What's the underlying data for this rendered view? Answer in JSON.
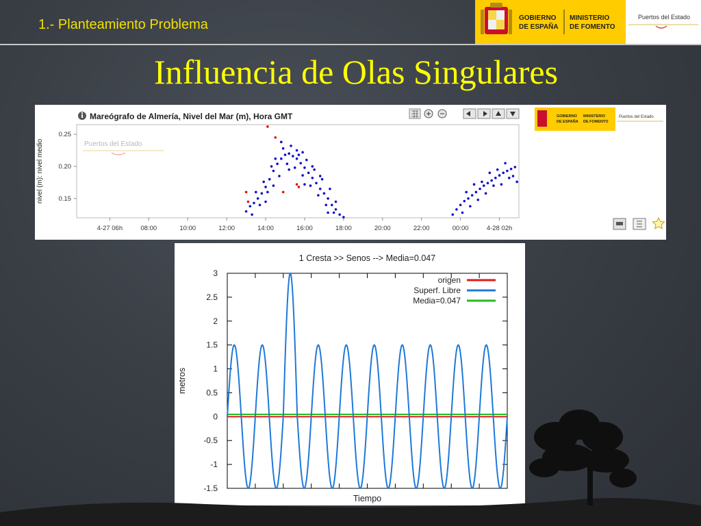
{
  "header": {
    "section_label": "1.- Planteamiento Problema",
    "gobierno_line1": "GOBIERNO",
    "gobierno_line2": "DE ESPAÑA",
    "ministerio_line1": "MINISTERIO",
    "ministerio_line2": "DE FOMENTO",
    "puertos": "Puertos del Estado"
  },
  "slide_title": "Influencia de Olas Singulares",
  "colors": {
    "title_yellow": "#ffff00",
    "gov_yellow": "#ffcc00",
    "obs_blue": "#1010cc",
    "obs_red": "#e01010",
    "series_red": "#e31a1c",
    "series_blue": "#1f78d8",
    "series_green": "#22bb22"
  },
  "chart_data": [
    {
      "type": "scatter",
      "title": "Mareógrafo de Almería, Nivel del Mar (m), Hora GMT",
      "ylabel": "nivel (m): nivel medio",
      "xlabel": "",
      "x_tick_labels": [
        "4-27 06h",
        "08:00",
        "10:00",
        "12:00",
        "14:00",
        "16:00",
        "18:00",
        "20:00",
        "22:00",
        "00:00",
        "4-28 02h"
      ],
      "x_tick_hours": [
        6,
        8,
        10,
        12,
        14,
        16,
        18,
        20,
        22,
        24,
        26
      ],
      "xlim_hours": [
        4.3,
        27.0
      ],
      "y_ticks": [
        0.15,
        0.2,
        0.25
      ],
      "y_tick_labels": [
        "0.15",
        "0.20",
        "0.25"
      ],
      "ylim": [
        0.12,
        0.265
      ],
      "watermark": "Puertos del Estado",
      "series": [
        {
          "color": "blue",
          "points": [
            [
              13.0,
              0.13
            ],
            [
              13.2,
              0.138
            ],
            [
              13.4,
              0.143
            ],
            [
              13.6,
              0.15
            ],
            [
              13.8,
              0.158
            ],
            [
              14.0,
              0.168
            ],
            [
              14.2,
              0.18
            ],
            [
              14.4,
              0.193
            ],
            [
              14.6,
              0.204
            ],
            [
              14.8,
              0.212
            ],
            [
              15.0,
              0.218
            ],
            [
              15.2,
              0.22
            ],
            [
              15.4,
              0.216
            ],
            [
              15.6,
              0.212
            ],
            [
              15.8,
              0.205
            ],
            [
              16.0,
              0.198
            ],
            [
              16.2,
              0.19
            ],
            [
              16.4,
              0.182
            ],
            [
              16.6,
              0.174
            ],
            [
              16.8,
              0.165
            ],
            [
              17.0,
              0.158
            ],
            [
              17.2,
              0.15
            ],
            [
              17.4,
              0.14
            ],
            [
              17.6,
              0.133
            ],
            [
              17.8,
              0.125
            ],
            [
              18.0,
              0.121
            ],
            [
              13.3,
              0.125
            ],
            [
              13.7,
              0.14
            ],
            [
              14.1,
              0.16
            ],
            [
              14.3,
              0.2
            ],
            [
              14.5,
              0.212
            ],
            [
              14.7,
              0.185
            ],
            [
              14.9,
              0.228
            ],
            [
              15.1,
              0.204
            ],
            [
              15.3,
              0.232
            ],
            [
              15.5,
              0.198
            ],
            [
              15.7,
              0.218
            ],
            [
              15.9,
              0.186
            ],
            [
              16.1,
              0.21
            ],
            [
              16.3,
              0.17
            ],
            [
              16.5,
              0.195
            ],
            [
              16.7,
              0.155
            ],
            [
              16.9,
              0.18
            ],
            [
              17.1,
              0.14
            ],
            [
              17.3,
              0.165
            ],
            [
              17.5,
              0.128
            ],
            [
              13.5,
              0.16
            ],
            [
              13.9,
              0.176
            ],
            [
              14.0,
              0.145
            ],
            [
              14.4,
              0.17
            ],
            [
              14.8,
              0.238
            ],
            [
              15.2,
              0.195
            ],
            [
              15.6,
              0.225
            ],
            [
              15.9,
              0.222
            ],
            [
              16.0,
              0.172
            ],
            [
              16.4,
              0.2
            ],
            [
              16.8,
              0.185
            ],
            [
              17.2,
              0.128
            ],
            [
              17.6,
              0.145
            ],
            [
              23.6,
              0.125
            ],
            [
              23.8,
              0.133
            ],
            [
              24.0,
              0.14
            ],
            [
              24.2,
              0.146
            ],
            [
              24.4,
              0.15
            ],
            [
              24.6,
              0.155
            ],
            [
              24.8,
              0.16
            ],
            [
              25.0,
              0.165
            ],
            [
              25.2,
              0.17
            ],
            [
              25.4,
              0.174
            ],
            [
              25.6,
              0.178
            ],
            [
              25.8,
              0.182
            ],
            [
              26.0,
              0.186
            ],
            [
              26.2,
              0.19
            ],
            [
              26.4,
              0.193
            ],
            [
              26.6,
              0.196
            ],
            [
              26.8,
              0.199
            ],
            [
              24.1,
              0.128
            ],
            [
              24.5,
              0.138
            ],
            [
              24.9,
              0.148
            ],
            [
              25.3,
              0.158
            ],
            [
              25.7,
              0.17
            ],
            [
              26.1,
              0.172
            ],
            [
              26.5,
              0.182
            ],
            [
              24.3,
              0.16
            ],
            [
              24.7,
              0.172
            ],
            [
              25.1,
              0.176
            ],
            [
              25.5,
              0.19
            ],
            [
              25.9,
              0.195
            ],
            [
              26.3,
              0.205
            ],
            [
              26.7,
              0.185
            ],
            [
              26.9,
              0.176
            ]
          ]
        },
        {
          "color": "red",
          "points": [
            [
              13.1,
              0.145
            ],
            [
              13.0,
              0.16
            ],
            [
              14.1,
              0.262
            ],
            [
              14.5,
              0.245
            ],
            [
              14.9,
              0.16
            ],
            [
              15.6,
              0.172
            ],
            [
              15.7,
              0.168
            ]
          ]
        }
      ]
    },
    {
      "type": "line",
      "title": "1 Cresta >> Senos --> Media=0.047",
      "xlabel": "Tiempo",
      "ylabel": "metros",
      "ylim": [
        -1.5,
        3
      ],
      "y_ticks": [
        "3",
        "2.5",
        "2",
        "1.5",
        "1",
        "0.5",
        "0",
        "-0.5",
        "-1",
        "-1.5"
      ],
      "x_ticks_labeled": false,
      "cycles": 10,
      "wave_amplitude": 1.5,
      "single_crest_cycle": 3,
      "single_crest_height": 3,
      "legend_position": "top-right",
      "series": [
        {
          "name": "origen",
          "constant": 0,
          "color": "#e31a1c"
        },
        {
          "name": "Superf. Libre",
          "color": "#1f78d8"
        },
        {
          "name": "Media=0.047",
          "constant": 0.047,
          "color": "#22bb22"
        }
      ]
    }
  ]
}
